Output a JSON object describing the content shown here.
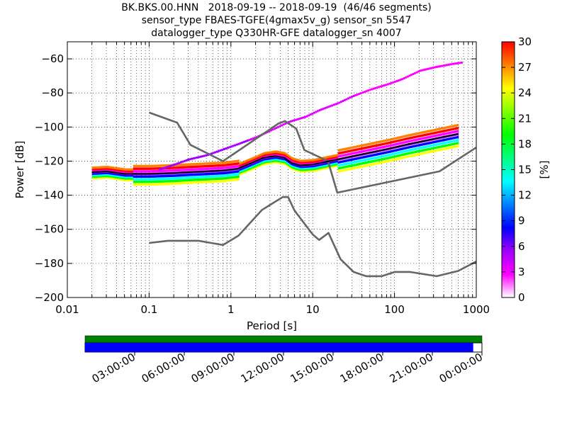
{
  "chart_data": {
    "type": "heatmap",
    "title_lines": [
      "BK.BKS.00.HNN   2018-09-19 -- 2018-09-19  (46/46 segments)",
      "sensor_type FBAES-TGFE(4gmax5v_g) sensor_sn 5547",
      "datalogger_type Q330HR-GFE datalogger_sn 4007"
    ],
    "xlabel": "Period [s]",
    "ylabel": "Power [dB]",
    "x_scale": "log",
    "xlim": [
      0.01,
      1000
    ],
    "ylim": [
      -200,
      -50
    ],
    "x_ticks": [
      0.01,
      0.1,
      1,
      10,
      100,
      1000
    ],
    "x_tick_labels": [
      "0.01",
      "0.1",
      "1",
      "10",
      "100",
      "1000"
    ],
    "y_ticks": [
      -200,
      -180,
      -160,
      -140,
      -120,
      -100,
      -80,
      -60
    ],
    "y_tick_labels": [
      "−200",
      "−180",
      "−160",
      "−140",
      "−120",
      "−100",
      "−80",
      "−60"
    ],
    "grid": true,
    "colorbar": {
      "label": "[%]",
      "range": [
        0,
        30
      ],
      "ticks": [
        0,
        3,
        6,
        9,
        12,
        15,
        18,
        21,
        24,
        27,
        30
      ],
      "colors": [
        "#ffffff",
        "#ff00ff",
        "#a000ff",
        "#0000ff",
        "#0080ff",
        "#00ffff",
        "#00ff80",
        "#00ff00",
        "#80ff00",
        "#ffff00",
        "#ff8000",
        "#ff0000"
      ]
    },
    "series": [
      {
        "role": "noise model high",
        "color": "#666666",
        "x": [
          0.1,
          0.22,
          0.32,
          0.8,
          3.8,
          4.6,
          6.3,
          7.9,
          15.4,
          20,
          354.8,
          1000
        ],
        "y": [
          -91.5,
          -97.4,
          -110.5,
          -120,
          -98,
          -96.5,
          -101,
          -113.5,
          -120,
          -138.5,
          -126,
          -112
        ]
      },
      {
        "role": "noise model low",
        "color": "#666666",
        "x": [
          0.1,
          0.17,
          0.4,
          0.8,
          1.24,
          2.4,
          4.3,
          5,
          6,
          10,
          12,
          15.6,
          21.9,
          31.6,
          45,
          70,
          101,
          154,
          328,
          600,
          1000
        ],
        "y": [
          -168,
          -166.7,
          -166.7,
          -169.2,
          -163.7,
          -148.6,
          -141.1,
          -141.1,
          -149,
          -163,
          -166.2,
          -162.1,
          -177.5,
          -185,
          -187.5,
          -187.5,
          -185,
          -185,
          -187.5,
          -184.4,
          -178.9
        ]
      },
      {
        "role": "mean PSD",
        "color": "#000000",
        "x": [
          0.02,
          0.03,
          0.05,
          0.1,
          0.2,
          0.3,
          0.5,
          0.8,
          1.2,
          1.8,
          2.5,
          3.5,
          4.5,
          5.5,
          7,
          10,
          20,
          40,
          80,
          150,
          300,
          600
        ],
        "y": [
          -126.5,
          -126,
          -127.5,
          -127.5,
          -127,
          -126.5,
          -126,
          -125.5,
          -124.5,
          -121,
          -118,
          -117,
          -118,
          -121,
          -122.5,
          -122,
          -119,
          -116,
          -113,
          -110,
          -107,
          -104
        ]
      },
      {
        "role": "PSD percent density, upper branch",
        "color": "#ff00ff",
        "x": [
          0.13,
          0.2,
          0.3,
          0.5,
          0.8,
          1.2,
          2,
          3,
          5,
          8,
          12,
          20,
          30,
          50,
          80,
          120,
          200,
          300,
          500,
          700
        ],
        "y": [
          -125,
          -122,
          -119,
          -116.5,
          -113,
          -110,
          -106,
          -102,
          -97,
          -94,
          -90,
          -86,
          -82,
          -78,
          -75,
          -72,
          -67,
          -65,
          -63,
          -62
        ]
      }
    ]
  },
  "timeline": {
    "time_labels": [
      "03:00:00",
      "06:00:00",
      "09:00:00",
      "12:00:00",
      "15:00:00",
      "18:00:00",
      "21:00:00",
      "00:00:00"
    ],
    "coverage_fraction": 0.978,
    "colors": {
      "availability": "#008000",
      "coverage": "#0000ff"
    }
  }
}
